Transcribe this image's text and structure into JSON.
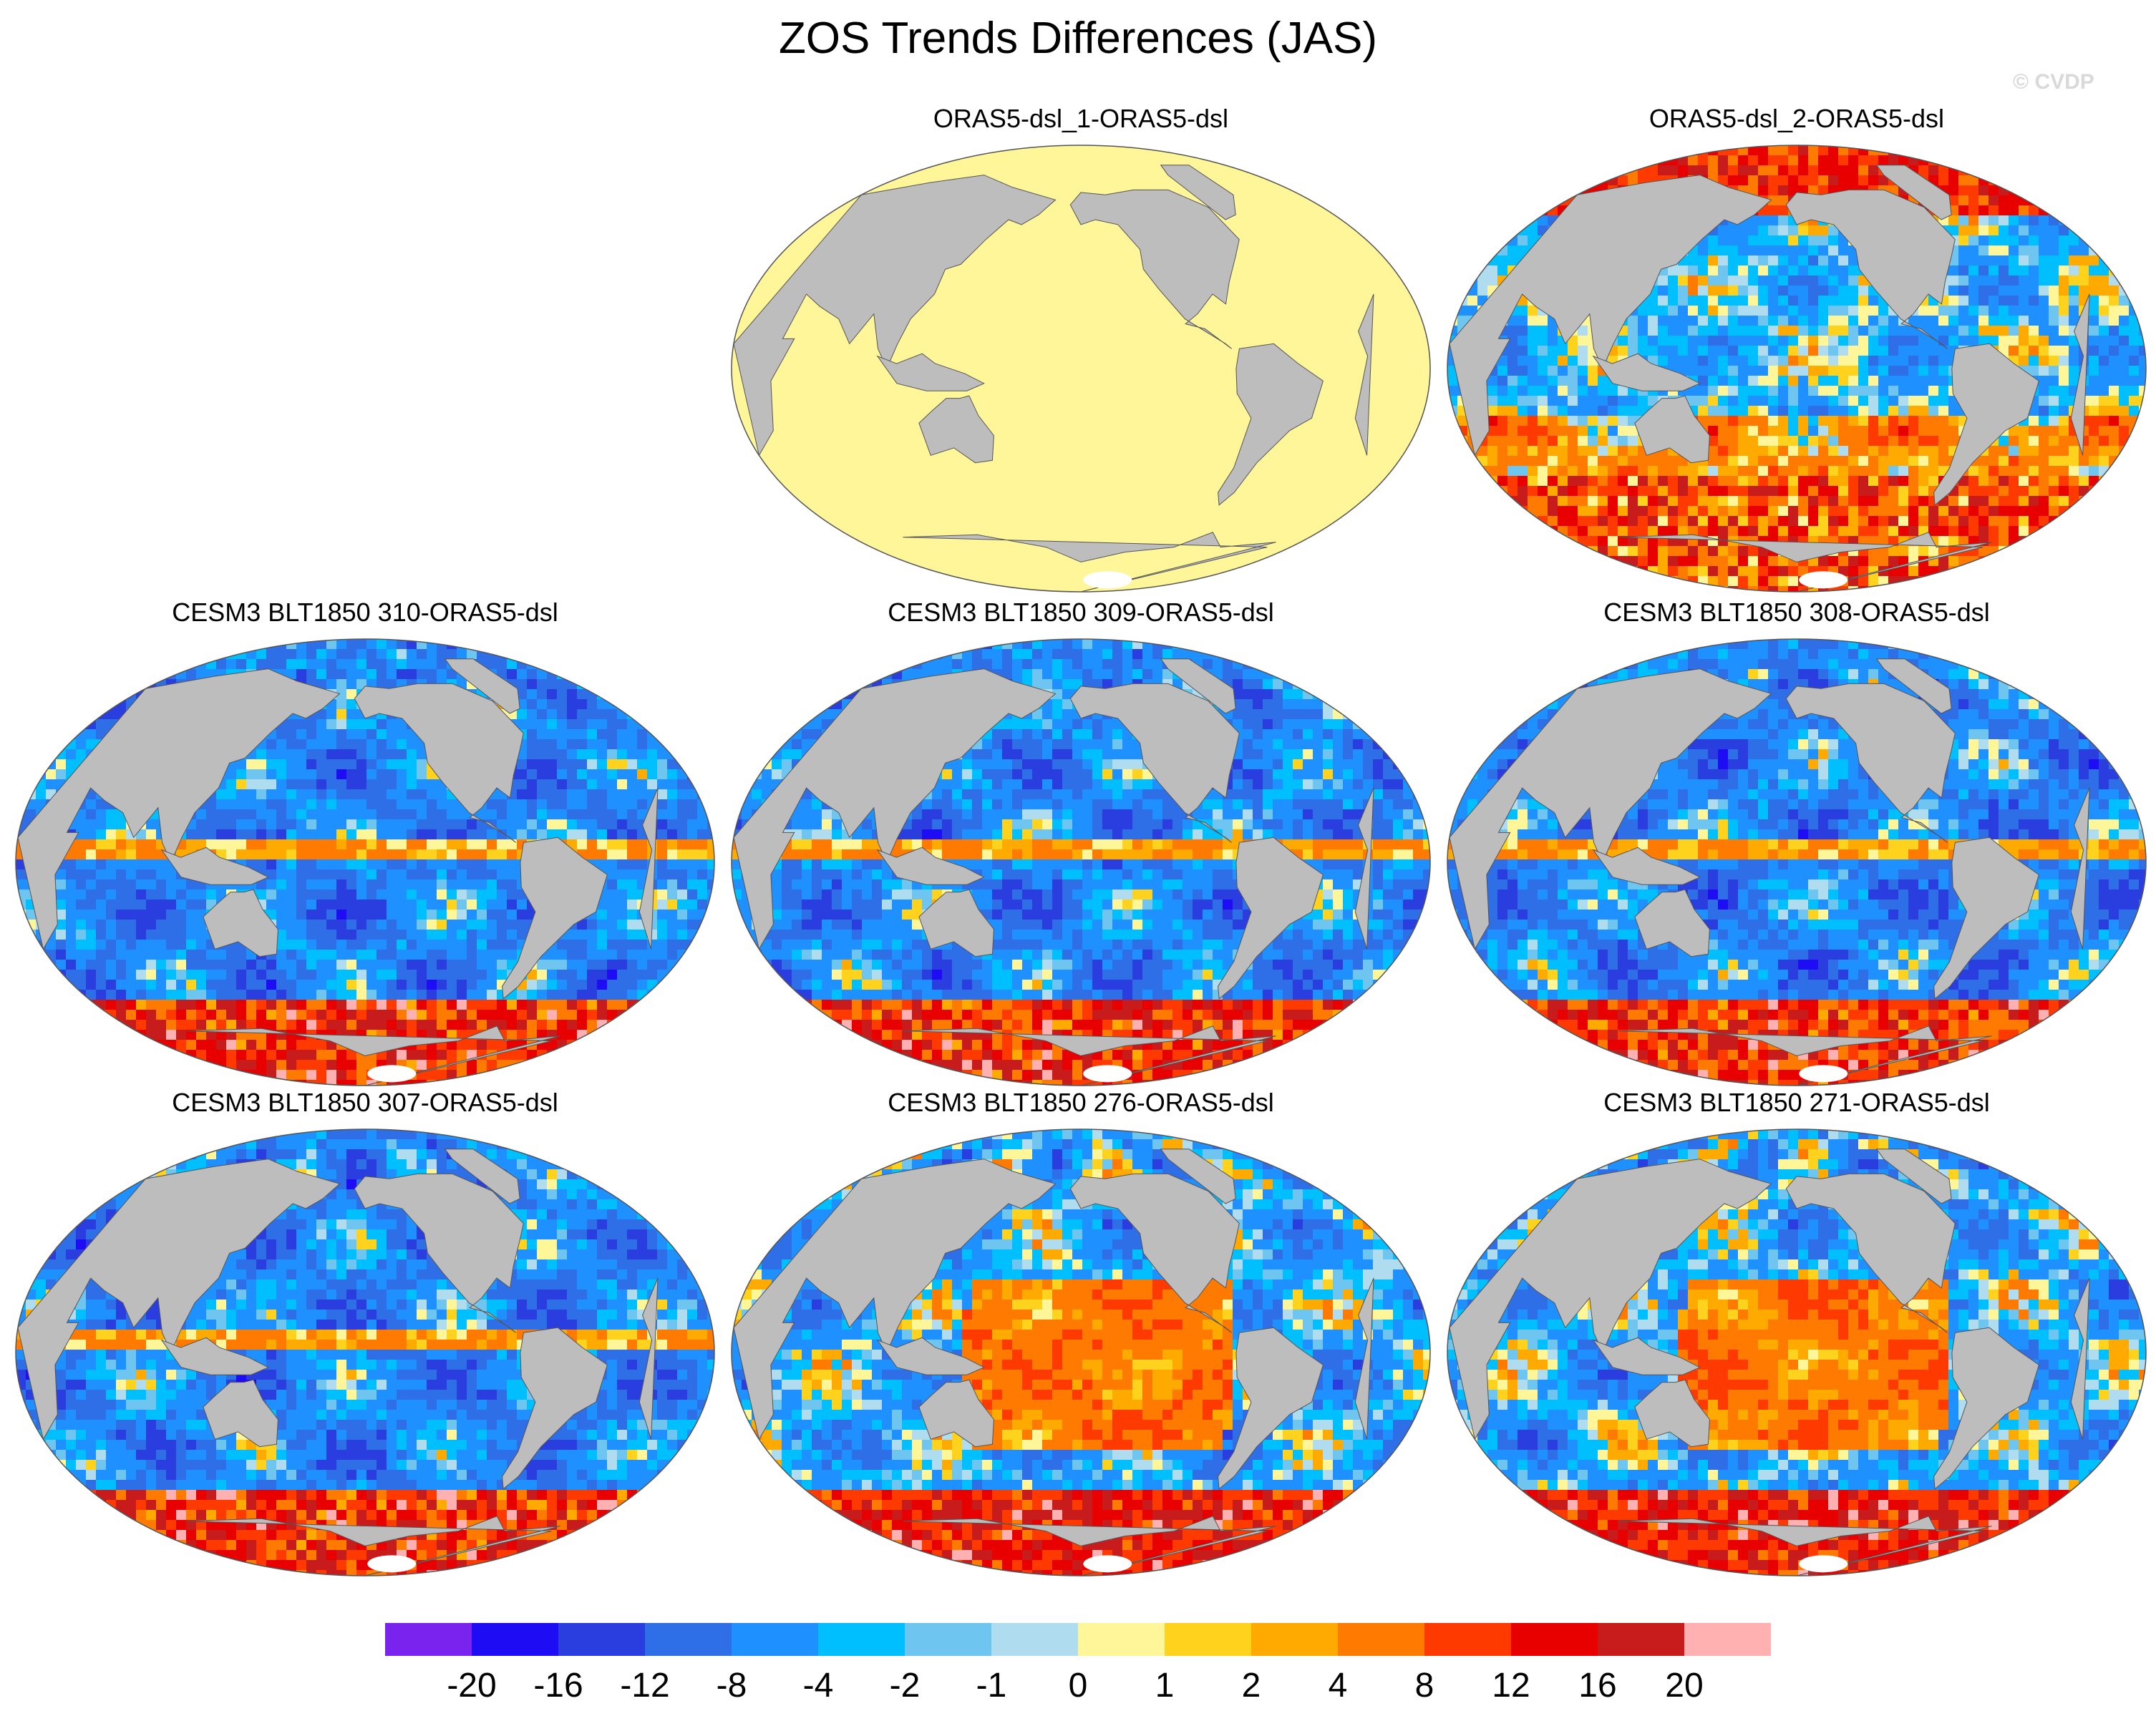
{
  "title": "ZOS Trends Differences (JAS)",
  "watermark": "© CVDP",
  "panels": [
    {
      "label": "ORAS5-dsl_1-ORAS5-dsl",
      "pattern": "uniform-zero"
    },
    {
      "label": "ORAS5-dsl_2-ORAS5-dsl",
      "pattern": "mixed-positive-south"
    },
    {
      "label": "CESM3 BLT1850 310-ORAS5-dsl",
      "pattern": "mostly-negative"
    },
    {
      "label": "CESM3 BLT1850 309-ORAS5-dsl",
      "pattern": "mostly-negative"
    },
    {
      "label": "CESM3 BLT1850 308-ORAS5-dsl",
      "pattern": "mostly-negative"
    },
    {
      "label": "CESM3 BLT1850 307-ORAS5-dsl",
      "pattern": "mostly-negative"
    },
    {
      "label": "CESM3 BLT1850 276-ORAS5-dsl",
      "pattern": "positive-pacific"
    },
    {
      "label": "CESM3 BLT1850 271-ORAS5-dsl",
      "pattern": "positive-pacific"
    }
  ],
  "colorbar": {
    "colors": [
      "#7a22ee",
      "#1e0cf5",
      "#2a3ee0",
      "#2e6ee6",
      "#1e90ff",
      "#00bfff",
      "#6ec6f0",
      "#b0dcf0",
      "#fff599",
      "#ffd21e",
      "#ffaa00",
      "#ff7a00",
      "#ff3a00",
      "#e80000",
      "#c81c1c",
      "#ffb0b0"
    ],
    "tick_labels": [
      "-20",
      "-16",
      "-12",
      "-8",
      "-4",
      "-2",
      "-1",
      "0",
      "1",
      "2",
      "4",
      "8",
      "12",
      "16",
      "20"
    ]
  },
  "map_colors": {
    "land": "#bdbdbd",
    "ice": "#ffffff",
    "border": "#555555"
  }
}
